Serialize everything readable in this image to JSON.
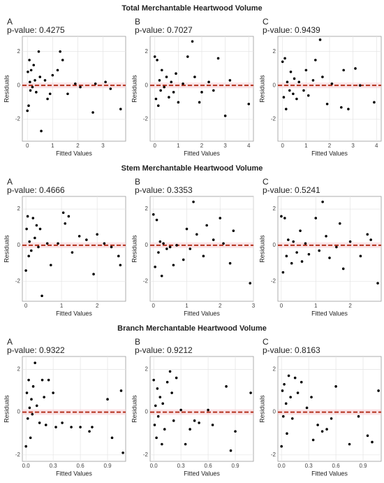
{
  "headings": [
    "Total Merchantable Heartwood Volume",
    "Stem Merchantable Heartwood Volume",
    "Branch Merchantable Heartwood Volume"
  ],
  "chart_data": [
    {
      "type": "scatter",
      "title": "A",
      "subtitle": "p-value: 0.4275",
      "xlabel": "Fitted Values",
      "ylabel": "Residuals",
      "color": "#000000",
      "reference_line": 0,
      "reference_color": "#b5301c",
      "grid": true,
      "x": [
        0.0,
        0.02,
        0.05,
        0.08,
        0.1,
        0.12,
        0.15,
        0.2,
        0.25,
        0.3,
        0.35,
        0.45,
        0.5,
        0.55,
        0.7,
        0.8,
        0.9,
        1.0,
        1.2,
        1.3,
        1.4,
        1.6,
        1.9,
        2.1,
        2.6,
        2.7,
        3.1,
        3.3,
        3.7
      ],
      "values": [
        -1.5,
        0.8,
        -1.2,
        1.5,
        0.2,
        -0.3,
        0.9,
        -0.1,
        1.2,
        0.3,
        -0.4,
        2.0,
        0.5,
        -2.7,
        0.3,
        -0.8,
        -0.5,
        0.6,
        0.9,
        2.0,
        1.5,
        -0.5,
        0.1,
        -0.1,
        -1.6,
        0.1,
        0.2,
        -0.2,
        -1.4
      ],
      "xlim": [
        -0.2,
        3.9
      ],
      "ylim": [
        -3.3,
        2.9
      ],
      "xticks": [
        0,
        1,
        2,
        3
      ],
      "yticks": [
        -2,
        0,
        2
      ]
    },
    {
      "type": "scatter",
      "title": "B",
      "subtitle": "p-value: 0.7027",
      "xlabel": "Fitted Values",
      "ylabel": "Residuals",
      "color": "#000000",
      "reference_line": 0,
      "reference_color": "#b5301c",
      "grid": true,
      "x": [
        0.0,
        0.05,
        0.1,
        0.15,
        0.2,
        0.25,
        0.3,
        0.4,
        0.5,
        0.6,
        0.7,
        0.8,
        0.9,
        1.0,
        1.2,
        1.4,
        1.6,
        1.7,
        1.9,
        2.0,
        2.3,
        2.5,
        2.7,
        3.0,
        3.2,
        4.0
      ],
      "values": [
        1.7,
        -0.8,
        1.5,
        -1.2,
        0.3,
        -0.3,
        0.9,
        -0.1,
        0.5,
        -0.7,
        0.2,
        -0.4,
        0.7,
        -1.0,
        0.1,
        1.7,
        2.6,
        0.5,
        -1.0,
        -0.4,
        0.2,
        -0.3,
        1.6,
        -1.8,
        0.3,
        -1.1
      ],
      "xlim": [
        -0.2,
        4.2
      ],
      "ylim": [
        -3.3,
        2.9
      ],
      "xticks": [
        0,
        1,
        2,
        3,
        4
      ],
      "yticks": [
        -2,
        0,
        2
      ]
    },
    {
      "type": "scatter",
      "title": "C",
      "subtitle": "p-value: 0.9439",
      "xlabel": "Fitted Values",
      "ylabel": "Residuals",
      "color": "#000000",
      "reference_line": 0,
      "reference_color": "#b5301c",
      "grid": true,
      "x": [
        0.0,
        0.05,
        0.1,
        0.15,
        0.2,
        0.3,
        0.35,
        0.45,
        0.5,
        0.6,
        0.7,
        0.9,
        1.0,
        1.1,
        1.3,
        1.4,
        1.6,
        1.7,
        1.9,
        2.1,
        2.5,
        2.6,
        2.8,
        3.1,
        3.3,
        3.9
      ],
      "values": [
        1.4,
        -0.7,
        1.6,
        -1.4,
        0.2,
        -0.3,
        0.8,
        -0.5,
        0.4,
        -0.8,
        0.2,
        -0.3,
        0.9,
        -0.6,
        0.3,
        1.5,
        2.7,
        0.5,
        -1.1,
        0.1,
        -1.3,
        0.9,
        -1.4,
        1.0,
        0.0,
        -1.0
      ],
      "xlim": [
        -0.2,
        4.2
      ],
      "ylim": [
        -3.3,
        2.9
      ],
      "xticks": [
        0,
        1,
        2,
        3,
        4
      ],
      "yticks": [
        -2,
        0,
        2
      ]
    },
    {
      "type": "scatter",
      "title": "A",
      "subtitle": "p-value: 0.4666",
      "xlabel": "Fitted Values",
      "ylabel": "Residuals",
      "color": "#000000",
      "reference_line": 0,
      "reference_color": "#b5301c",
      "grid": true,
      "x": [
        0.0,
        0.02,
        0.05,
        0.08,
        0.1,
        0.15,
        0.2,
        0.25,
        0.3,
        0.35,
        0.4,
        0.45,
        0.6,
        0.7,
        0.9,
        1.05,
        1.1,
        1.2,
        1.3,
        1.5,
        1.7,
        1.9,
        2.0,
        2.2,
        2.4,
        2.6,
        2.65
      ],
      "values": [
        -1.4,
        0.9,
        1.6,
        -0.6,
        0.2,
        -0.3,
        1.5,
        0.4,
        1.1,
        -0.1,
        0.9,
        -2.8,
        0.1,
        -1.1,
        0.1,
        1.8,
        1.2,
        1.6,
        -0.4,
        0.5,
        0.3,
        -1.6,
        0.6,
        0.1,
        -0.1,
        -0.6,
        -1.1
      ],
      "xlim": [
        -0.1,
        2.8
      ],
      "ylim": [
        -3.1,
        2.7
      ],
      "xticks": [
        0,
        1,
        2
      ],
      "yticks": [
        -2,
        0,
        2
      ]
    },
    {
      "type": "scatter",
      "title": "B",
      "subtitle": "p-value: 0.3353",
      "xlabel": "Fitted Values",
      "ylabel": "Residuals",
      "color": "#000000",
      "reference_line": 0,
      "reference_color": "#b5301c",
      "grid": true,
      "x": [
        0.0,
        0.05,
        0.1,
        0.15,
        0.2,
        0.25,
        0.3,
        0.4,
        0.5,
        0.6,
        0.7,
        0.9,
        1.0,
        1.1,
        1.2,
        1.3,
        1.5,
        1.6,
        1.8,
        2.0,
        2.1,
        2.3,
        2.4,
        2.9
      ],
      "values": [
        1.7,
        -1.2,
        1.4,
        -0.4,
        0.2,
        -1.7,
        0.1,
        -0.2,
        -0.1,
        -1.1,
        0.0,
        -0.8,
        0.9,
        -0.2,
        2.4,
        0.6,
        -0.6,
        1.1,
        0.3,
        1.5,
        0.1,
        -1.0,
        0.8,
        -2.1
      ],
      "xlim": [
        -0.1,
        3.0
      ],
      "ylim": [
        -3.1,
        2.7
      ],
      "xticks": [
        0,
        1,
        2,
        3
      ],
      "yticks": [
        -2,
        0,
        2
      ]
    },
    {
      "type": "scatter",
      "title": "C",
      "subtitle": "p-value: 0.5241",
      "xlabel": "Fitted Values",
      "ylabel": "Residuals",
      "color": "#000000",
      "reference_line": 0,
      "reference_color": "#b5301c",
      "grid": true,
      "x": [
        0.0,
        0.05,
        0.1,
        0.15,
        0.2,
        0.3,
        0.35,
        0.45,
        0.55,
        0.6,
        0.7,
        0.8,
        1.0,
        1.1,
        1.2,
        1.3,
        1.4,
        1.6,
        1.7,
        1.8,
        2.0,
        2.3,
        2.5,
        2.6,
        2.8
      ],
      "values": [
        1.6,
        -1.5,
        1.5,
        -0.6,
        0.3,
        -1.0,
        0.2,
        -0.4,
        0.8,
        -0.9,
        0.1,
        -0.5,
        1.5,
        -0.3,
        2.4,
        0.5,
        -0.7,
        -0.1,
        1.2,
        -1.3,
        0.2,
        -0.6,
        0.6,
        0.3,
        -2.1
      ],
      "xlim": [
        -0.1,
        2.9
      ],
      "ylim": [
        -3.1,
        2.7
      ],
      "xticks": [
        0,
        1,
        2
      ],
      "yticks": [
        -2,
        0,
        2
      ]
    },
    {
      "type": "scatter",
      "title": "A",
      "subtitle": "p-value: 0.9322",
      "xlabel": "Fitted Values",
      "ylabel": "Residuals",
      "color": "#000000",
      "reference_line": 0,
      "reference_color": "#b5301c",
      "grid": true,
      "x": [
        0.0,
        0.01,
        0.02,
        0.03,
        0.04,
        0.05,
        0.06,
        0.07,
        0.08,
        0.1,
        0.12,
        0.15,
        0.18,
        0.2,
        0.22,
        0.25,
        0.3,
        0.33,
        0.4,
        0.5,
        0.6,
        0.7,
        0.73,
        0.9,
        0.95,
        1.05,
        1.07
      ],
      "values": [
        -1.6,
        0.9,
        -0.3,
        1.5,
        0.2,
        -1.2,
        0.6,
        -0.1,
        1.2,
        2.3,
        0.3,
        -0.5,
        1.5,
        0.7,
        -0.6,
        1.5,
        0.9,
        -0.7,
        -0.5,
        -0.7,
        -0.7,
        -0.9,
        -0.7,
        0.6,
        -1.2,
        1.0,
        -1.9
      ],
      "xlim": [
        -0.04,
        1.1
      ],
      "ylim": [
        -2.3,
        2.6
      ],
      "xticks": [
        {
          "value": 0,
          "label": "0.0"
        },
        0.3,
        0.6,
        0.9
      ],
      "yticks": [
        -2,
        0,
        2
      ]
    },
    {
      "type": "scatter",
      "title": "B",
      "subtitle": "p-value: 0.9212",
      "xlabel": "Fitted Values",
      "ylabel": "Residuals",
      "color": "#000000",
      "reference_line": 0,
      "reference_color": "#b5301c",
      "grid": true,
      "x": [
        0.0,
        0.01,
        0.02,
        0.03,
        0.04,
        0.05,
        0.07,
        0.09,
        0.1,
        0.12,
        0.15,
        0.18,
        0.2,
        0.22,
        0.25,
        0.3,
        0.35,
        0.4,
        0.45,
        0.5,
        0.6,
        0.65,
        0.8,
        0.85,
        0.9,
        1.07
      ],
      "values": [
        1.5,
        -0.6,
        0.3,
        -1.2,
        1.1,
        -0.2,
        0.7,
        -1.5,
        0.4,
        -0.8,
        1.4,
        1.9,
        0.9,
        -0.4,
        1.6,
        0.1,
        -1.5,
        -0.8,
        -0.4,
        -0.5,
        0.1,
        -0.6,
        1.2,
        -1.8,
        -0.9,
        0.9
      ],
      "xlim": [
        -0.04,
        1.1
      ],
      "ylim": [
        -2.3,
        2.6
      ],
      "xticks": [
        {
          "value": 0,
          "label": "0.0"
        },
        0.3,
        0.6,
        0.9
      ],
      "yticks": [
        -2,
        0,
        2
      ]
    },
    {
      "type": "scatter",
      "title": "C",
      "subtitle": "p-value: 0.8163",
      "xlabel": "Fitted Values",
      "ylabel": "Residuals",
      "color": "#000000",
      "reference_line": 0,
      "reference_color": "#b5301c",
      "grid": true,
      "x": [
        0.0,
        0.01,
        0.02,
        0.03,
        0.05,
        0.06,
        0.08,
        0.1,
        0.12,
        0.15,
        0.18,
        0.22,
        0.28,
        0.33,
        0.35,
        0.4,
        0.45,
        0.5,
        0.55,
        0.6,
        0.75,
        0.85,
        0.95,
        1.0,
        1.07
      ],
      "values": [
        -1.6,
        1.0,
        -0.2,
        1.3,
        0.4,
        -1.0,
        1.7,
        0.7,
        -0.3,
        1.6,
        0.9,
        1.4,
        0.2,
        0.7,
        -1.3,
        -0.6,
        -0.9,
        -0.8,
        -0.3,
        1.2,
        -1.5,
        -0.2,
        -1.1,
        -1.4,
        1.0
      ],
      "xlim": [
        -0.04,
        1.1
      ],
      "ylim": [
        -2.3,
        2.6
      ],
      "xticks": [
        {
          "value": 0,
          "label": "0.0"
        },
        0.3,
        0.6,
        0.9
      ],
      "yticks": [
        -2,
        0,
        2
      ]
    }
  ]
}
